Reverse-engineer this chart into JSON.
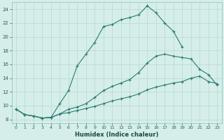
{
  "xlabel": "Humidex (Indice chaleur)",
  "xlim": [
    -0.5,
    23.5
  ],
  "ylim": [
    7.5,
    25.0
  ],
  "xtick_vals": [
    0,
    1,
    2,
    3,
    4,
    5,
    6,
    7,
    8,
    9,
    10,
    11,
    12,
    13,
    14,
    15,
    16,
    17,
    18,
    19,
    20,
    21,
    22,
    23
  ],
  "ytick_vals": [
    8,
    10,
    12,
    14,
    16,
    18,
    20,
    22,
    24
  ],
  "background_color": "#d5eee9",
  "grid_color": "#b8d8d2",
  "line_color": "#2d7a72",
  "line1_x": [
    0,
    1,
    2,
    3,
    4,
    5,
    6,
    7,
    8,
    9,
    10,
    11,
    12,
    13,
    14,
    15,
    16,
    17,
    18,
    19
  ],
  "line1_y": [
    9.5,
    8.7,
    8.5,
    8.2,
    8.3,
    10.3,
    12.2,
    15.8,
    17.5,
    19.2,
    21.5,
    21.8,
    22.5,
    22.8,
    23.2,
    24.5,
    23.5,
    22.0,
    20.8,
    18.5
  ],
  "line2_x": [
    0,
    1,
    2,
    3,
    4,
    5,
    6,
    7,
    8,
    9,
    10,
    11,
    12,
    13,
    14,
    15,
    16,
    17,
    18,
    19,
    20,
    21,
    22,
    23
  ],
  "line2_y": [
    9.5,
    8.7,
    8.5,
    8.2,
    8.3,
    8.8,
    9.5,
    9.8,
    10.3,
    11.2,
    12.2,
    12.8,
    13.3,
    13.8,
    14.8,
    16.2,
    17.2,
    17.5,
    17.2,
    17.0,
    16.8,
    15.3,
    14.5,
    13.0
  ],
  "line3_x": [
    0,
    1,
    2,
    3,
    4,
    5,
    6,
    7,
    8,
    9,
    10,
    11,
    12,
    13,
    14,
    15,
    16,
    17,
    18,
    19,
    20,
    21,
    22,
    23
  ],
  "line3_y": [
    9.5,
    8.7,
    8.5,
    8.2,
    8.3,
    8.8,
    9.0,
    9.3,
    9.6,
    9.9,
    10.3,
    10.7,
    11.0,
    11.3,
    11.7,
    12.3,
    12.7,
    13.0,
    13.3,
    13.5,
    14.0,
    14.3,
    13.5,
    13.2
  ]
}
